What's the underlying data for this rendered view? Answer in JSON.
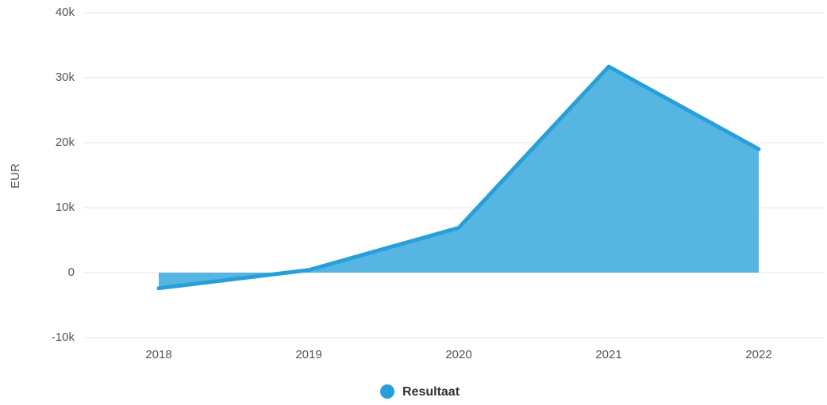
{
  "chart_data": {
    "type": "area",
    "y_label": "EUR",
    "categories": [
      "2018",
      "2019",
      "2020",
      "2021",
      "2022"
    ],
    "series": [
      {
        "name": "Resultaat",
        "color": "#27a0d9",
        "fill": "#57b5e2",
        "values": [
          -2400,
          400,
          6900,
          31700,
          19000
        ]
      }
    ],
    "ylim": [
      -10000,
      40000
    ],
    "yticks": [
      {
        "value": -10000,
        "label": "-10k"
      },
      0,
      {
        "value": 10000,
        "label": "10k"
      },
      {
        "value": 20000,
        "label": "20k"
      },
      {
        "value": 30000,
        "label": "30k"
      },
      {
        "value": 40000,
        "label": "40k"
      }
    ],
    "grid": true,
    "legend": "bottom"
  }
}
